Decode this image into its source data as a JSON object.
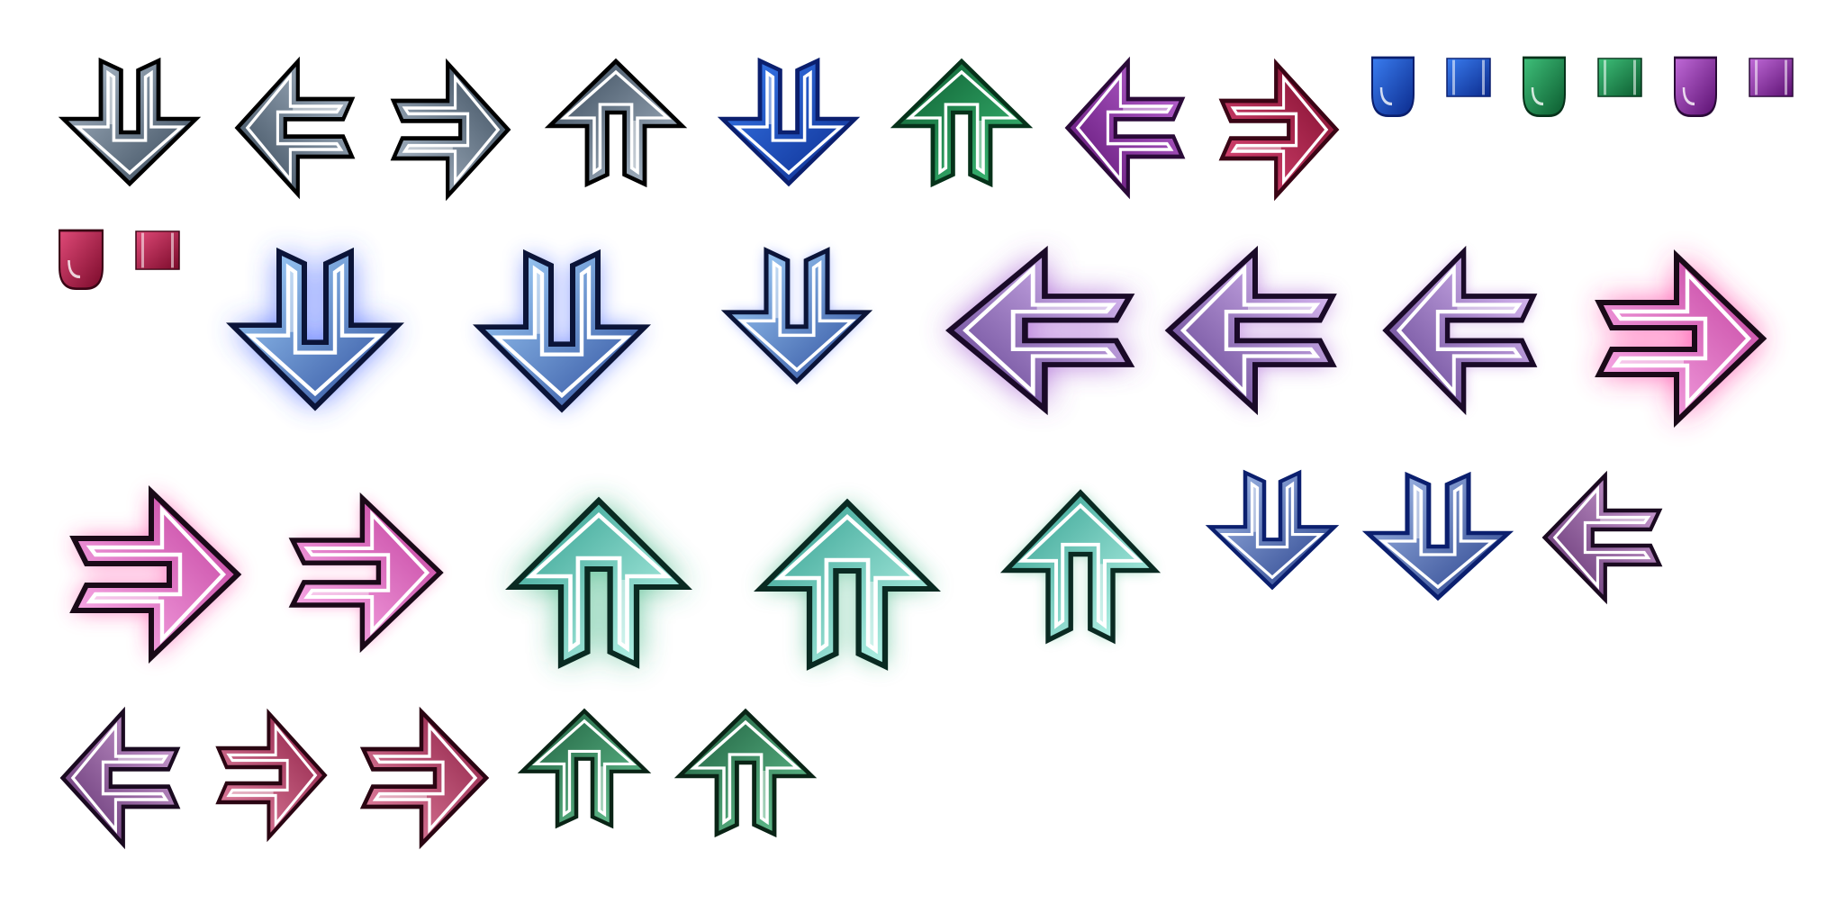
{
  "palette": {
    "gray": {
      "light": "#b2c0cf",
      "dark": "#334455",
      "glow": "#8899aa",
      "edge": "#000000"
    },
    "blue": {
      "light": "#3a7df0",
      "dark": "#0b2a8c",
      "glow": "#4a6bff",
      "edge": "#0b1f6e"
    },
    "green": {
      "light": "#3fc07a",
      "dark": "#0b5a2e",
      "glow": "#3fae78",
      "edge": "#06321a"
    },
    "purple": {
      "light": "#c06ad8",
      "dark": "#5a0f70",
      "glow": "#a040c8",
      "edge": "#2a0a38"
    },
    "red": {
      "light": "#e04a78",
      "dark": "#7a0a2a",
      "glow": "#ff3f8f",
      "edge": "#3a0515"
    },
    "sky": {
      "light": "#a8d8ff",
      "dark": "#2a4a9a",
      "glow": "#3a5cff",
      "edge": "#0b1438"
    },
    "lilac": {
      "light": "#e8c8ff",
      "dark": "#5a3a8a",
      "glow": "#9a4acc",
      "edge": "#1a0a28"
    },
    "pink": {
      "light": "#ffb8f0",
      "dark": "#c03a9a",
      "glow": "#ff2f9a",
      "edge": "#1a0a18"
    },
    "mint": {
      "light": "#c8fff4",
      "dark": "#2a9a8a",
      "glow": "#2fae78",
      "edge": "#0a2a22"
    },
    "steel": {
      "light": "#a8c0ec",
      "dark": "#233c88",
      "glow": "#3a5cff",
      "edge": "#0b1f6e"
    },
    "plum": {
      "light": "#d6a8dc",
      "dark": "#5a2a6a",
      "glow": "#a040c8",
      "edge": "#1a0a20"
    },
    "rose": {
      "light": "#e88aa8",
      "dark": "#8a1a40",
      "glow": "#ff3f8f",
      "edge": "#2a0512"
    },
    "forest": {
      "light": "#6ac896",
      "dark": "#1a5a3a",
      "glow": "#3fae78",
      "edge": "#0a2416"
    }
  },
  "sprites": [
    {
      "kind": "arrow",
      "dir": "down",
      "color": "gray",
      "glow": 0
    },
    {
      "kind": "arrow",
      "dir": "left",
      "color": "gray",
      "glow": 0
    },
    {
      "kind": "arrow",
      "dir": "right",
      "color": "gray",
      "glow": 0
    },
    {
      "kind": "arrow",
      "dir": "up",
      "color": "gray",
      "glow": 0
    },
    {
      "kind": "arrow",
      "dir": "down",
      "color": "blue",
      "glow": 0
    },
    {
      "kind": "arrow",
      "dir": "up",
      "color": "green",
      "glow": 0
    },
    {
      "kind": "arrow",
      "dir": "left",
      "color": "purple",
      "glow": 0
    },
    {
      "kind": "arrow",
      "dir": "right",
      "color": "red",
      "glow": 0
    },
    {
      "kind": "hold-cap",
      "color": "blue"
    },
    {
      "kind": "hold-body",
      "color": "blue"
    },
    {
      "kind": "hold-cap",
      "color": "green"
    },
    {
      "kind": "hold-body",
      "color": "green"
    },
    {
      "kind": "hold-cap",
      "color": "purple"
    },
    {
      "kind": "hold-body",
      "color": "purple"
    },
    {
      "kind": "hold-cap",
      "color": "red"
    },
    {
      "kind": "hold-body",
      "color": "red"
    },
    {
      "kind": "arrow",
      "dir": "down",
      "color": "sky",
      "glow": 3
    },
    {
      "kind": "arrow",
      "dir": "down",
      "color": "sky",
      "glow": 2
    },
    {
      "kind": "arrow",
      "dir": "down",
      "color": "sky",
      "glow": 1
    },
    {
      "kind": "arrow",
      "dir": "left",
      "color": "lilac",
      "glow": 3
    },
    {
      "kind": "arrow",
      "dir": "left",
      "color": "lilac",
      "glow": 2
    },
    {
      "kind": "arrow",
      "dir": "left",
      "color": "lilac",
      "glow": 1
    },
    {
      "kind": "arrow",
      "dir": "right",
      "color": "pink",
      "glow": 3
    },
    {
      "kind": "arrow",
      "dir": "right",
      "color": "pink",
      "glow": 2
    },
    {
      "kind": "arrow",
      "dir": "right",
      "color": "pink",
      "glow": 1
    },
    {
      "kind": "arrow",
      "dir": "up",
      "color": "mint",
      "glow": 3
    },
    {
      "kind": "arrow",
      "dir": "up",
      "color": "mint",
      "glow": 2
    },
    {
      "kind": "arrow",
      "dir": "up",
      "color": "mint",
      "glow": 1
    },
    {
      "kind": "arrow",
      "dir": "down",
      "color": "steel",
      "glow": 0
    },
    {
      "kind": "arrow",
      "dir": "down",
      "color": "steel",
      "glow": 0
    },
    {
      "kind": "arrow",
      "dir": "left",
      "color": "plum",
      "glow": 0
    },
    {
      "kind": "arrow",
      "dir": "left",
      "color": "plum",
      "glow": 0
    },
    {
      "kind": "arrow",
      "dir": "right",
      "color": "rose",
      "glow": 0
    },
    {
      "kind": "arrow",
      "dir": "right",
      "color": "rose",
      "glow": 0
    },
    {
      "kind": "arrow",
      "dir": "up",
      "color": "forest",
      "glow": 0
    },
    {
      "kind": "arrow",
      "dir": "up",
      "color": "forest",
      "glow": 0
    }
  ]
}
